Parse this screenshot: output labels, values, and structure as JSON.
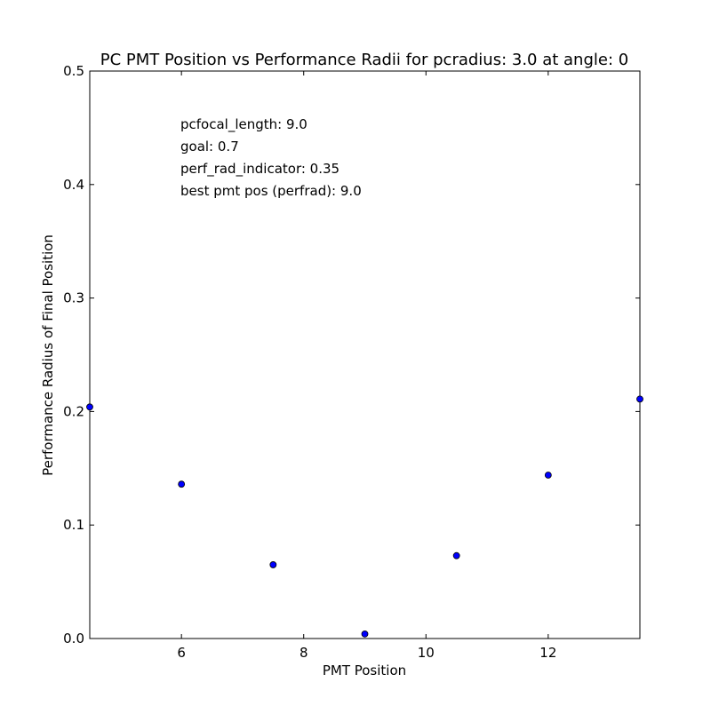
{
  "chart_data": {
    "type": "scatter",
    "title": "PC PMT Position vs Performance Radii for pcradius: 3.0 at angle: 0",
    "xlabel": "PMT Position",
    "ylabel": "Performance Radius of Final Position",
    "xlim": [
      4.5,
      13.5
    ],
    "ylim": [
      0.0,
      0.5
    ],
    "xticks": [
      6,
      8,
      10,
      12
    ],
    "xtick_labels": [
      "6",
      "8",
      "10",
      "12"
    ],
    "yticks": [
      0.0,
      0.1,
      0.2,
      0.3,
      0.4,
      0.5
    ],
    "ytick_labels": [
      "0.0",
      "0.1",
      "0.2",
      "0.3",
      "0.4",
      "0.5"
    ],
    "grid": false,
    "marker_color": "#0000ff",
    "marker_edge_color": "#000000",
    "points": [
      {
        "x": 4.5,
        "y": 0.204
      },
      {
        "x": 6.0,
        "y": 0.136
      },
      {
        "x": 7.5,
        "y": 0.065
      },
      {
        "x": 9.0,
        "y": 0.004
      },
      {
        "x": 10.5,
        "y": 0.073
      },
      {
        "x": 12.0,
        "y": 0.144
      },
      {
        "x": 13.5,
        "y": 0.211
      }
    ],
    "annotations": [
      "pcfocal_length: 9.0",
      "goal: 0.7",
      "perf_rad_indicator: 0.35",
      "best pmt pos (perfrad): 9.0"
    ]
  }
}
